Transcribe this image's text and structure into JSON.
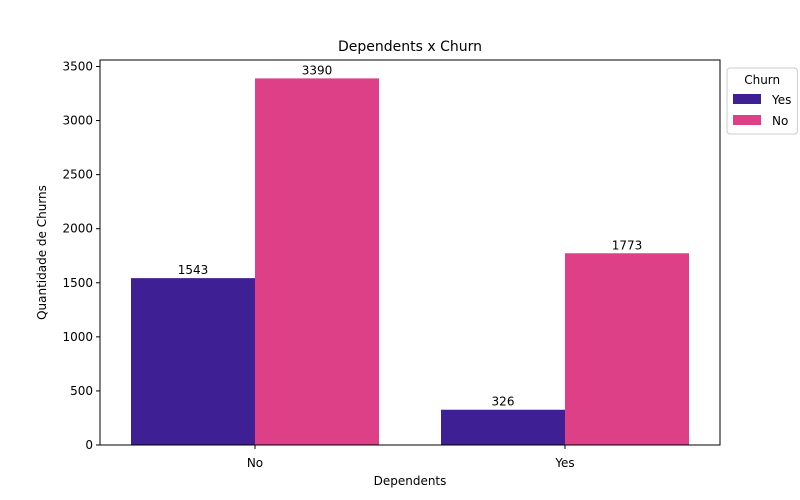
{
  "chart_data": {
    "type": "bar",
    "title": "Dependents x Churn",
    "xlabel": "Dependents",
    "ylabel": "Quantidade de Churns",
    "categories": [
      "No",
      "Yes"
    ],
    "series": [
      {
        "name": "Yes",
        "values": [
          1543,
          326
        ],
        "color": "#3f1f94"
      },
      {
        "name": "No",
        "values": [
          3390,
          1773
        ],
        "color": "#dd4087"
      }
    ],
    "ylim": [
      0,
      3560
    ],
    "yticks": [
      0,
      500,
      1000,
      1500,
      2000,
      2500,
      3000,
      3500
    ],
    "grid": false,
    "legend": {
      "title": "Churn",
      "placement": "outside-top-right"
    }
  }
}
